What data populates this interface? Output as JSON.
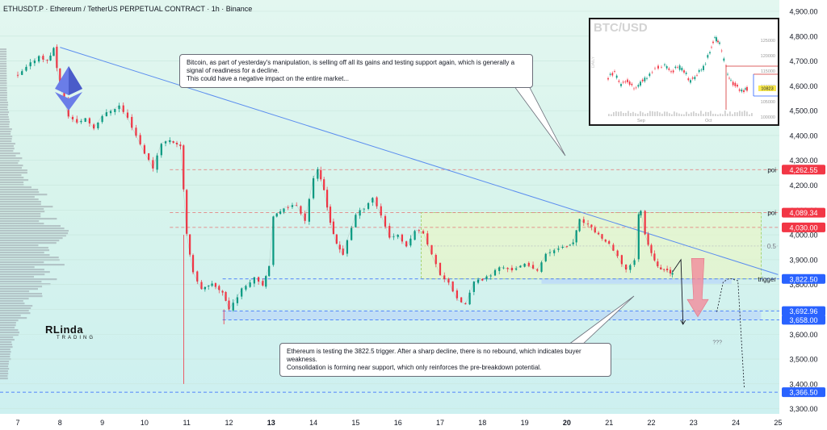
{
  "header": {
    "title": "ETHUSDT.P · Ethereum / TetherUS PERPETUAL CONTRACT · 1h · Binance"
  },
  "callouts": {
    "btc": "Bitcoin, as part of yesterday's manipulation, is selling off all its gains and testing support again, which is generally a signal of readiness for a decline.\nThis could have a negative impact on the entire market...",
    "eth": "Ethereum is testing the 3822.5 trigger. After a sharp decline, there is no rebound, which indicates buyer weakness.\nConsolidation is forming near support, which only reinforces the pre-breakdown potential."
  },
  "logo": {
    "main": "RLinda",
    "sub": "TRADING"
  },
  "colors": {
    "up": "#089981",
    "down": "#f23645",
    "accent": "#2962ff",
    "red_label": "#f23645",
    "blue_label": "#2962ff",
    "poi_line": "#e57373",
    "trendline": "#5b8def"
  },
  "chart_data": {
    "type": "line",
    "title": "ETHUSDT.P · Ethereum / TetherUS PERPETUAL CONTRACT · 1h · Binance",
    "x_ticks": [
      "7",
      "8",
      "9",
      "10",
      "11",
      "12",
      "13",
      "14",
      "15",
      "16",
      "17",
      "18",
      "19",
      "20",
      "21",
      "22",
      "23",
      "24",
      "25"
    ],
    "y_ticks": [
      "4,900.00",
      "4,800.00",
      "4,700.00",
      "4,600.00",
      "4,500.00",
      "4,400.00",
      "4,300.00",
      "4,200.00",
      "4,100.00",
      "4,000.00",
      "3,900.00",
      "3,800.00",
      "3,700.00",
      "3,600.00",
      "3,500.00",
      "3,400.00",
      "3,300.00"
    ],
    "ylim": [
      3270,
      4935
    ],
    "price_path": [
      [
        7.0,
        4640
      ],
      [
        7.3,
        4690
      ],
      [
        7.5,
        4720
      ],
      [
        7.7,
        4700
      ],
      [
        7.85,
        4750
      ],
      [
        8.0,
        4600
      ],
      [
        8.2,
        4480
      ],
      [
        8.4,
        4450
      ],
      [
        8.6,
        4470
      ],
      [
        8.8,
        4430
      ],
      [
        9.0,
        4480
      ],
      [
        9.2,
        4500
      ],
      [
        9.4,
        4520
      ],
      [
        9.6,
        4470
      ],
      [
        9.8,
        4400
      ],
      [
        10.0,
        4330
      ],
      [
        10.2,
        4270
      ],
      [
        10.4,
        4370
      ],
      [
        10.6,
        4380
      ],
      [
        10.85,
        4360
      ],
      [
        11.0,
        4000
      ],
      [
        11.15,
        3850
      ],
      [
        11.35,
        3780
      ],
      [
        11.6,
        3800
      ],
      [
        11.85,
        3770
      ],
      [
        12.0,
        3700
      ],
      [
        12.3,
        3780
      ],
      [
        12.6,
        3830
      ],
      [
        12.8,
        3800
      ],
      [
        12.95,
        3870
      ],
      [
        13.05,
        4070
      ],
      [
        13.3,
        4110
      ],
      [
        13.6,
        4120
      ],
      [
        13.8,
        4060
      ],
      [
        14.0,
        4230
      ],
      [
        14.1,
        4260
      ],
      [
        14.25,
        4180
      ],
      [
        14.4,
        4050
      ],
      [
        14.55,
        3960
      ],
      [
        14.7,
        3920
      ],
      [
        14.8,
        3980
      ],
      [
        15.0,
        4080
      ],
      [
        15.2,
        4110
      ],
      [
        15.4,
        4150
      ],
      [
        15.6,
        4080
      ],
      [
        15.8,
        3990
      ],
      [
        16.0,
        4000
      ],
      [
        16.2,
        3950
      ],
      [
        16.4,
        4020
      ],
      [
        16.6,
        4010
      ],
      [
        16.8,
        3920
      ],
      [
        17.0,
        3840
      ],
      [
        17.2,
        3810
      ],
      [
        17.4,
        3740
      ],
      [
        17.6,
        3720
      ],
      [
        17.8,
        3810
      ],
      [
        18.0,
        3820
      ],
      [
        18.2,
        3840
      ],
      [
        18.4,
        3870
      ],
      [
        18.7,
        3860
      ],
      [
        19.0,
        3880
      ],
      [
        19.3,
        3860
      ],
      [
        19.5,
        3920
      ],
      [
        19.8,
        3950
      ],
      [
        20.0,
        3950
      ],
      [
        20.15,
        3970
      ],
      [
        20.3,
        4060
      ],
      [
        20.5,
        4040
      ],
      [
        20.75,
        4000
      ],
      [
        21.0,
        3960
      ],
      [
        21.2,
        3910
      ],
      [
        21.4,
        3860
      ],
      [
        21.5,
        3880
      ],
      [
        21.6,
        3900
      ],
      [
        21.7,
        4080
      ],
      [
        21.75,
        4100
      ],
      [
        21.85,
        4000
      ],
      [
        22.0,
        3930
      ],
      [
        22.15,
        3870
      ],
      [
        22.3,
        3860
      ],
      [
        22.45,
        3845
      ],
      [
        22.5,
        3850
      ]
    ],
    "levels": [
      {
        "label": "4,262.55",
        "value": 4262.55,
        "style": "red",
        "tag": "poi"
      },
      {
        "label": "4,089.34",
        "value": 4089.34,
        "style": "red",
        "tag": "poi"
      },
      {
        "label": "4,030.00",
        "value": 4030.0,
        "style": "red",
        "tag": ""
      },
      {
        "label": "3,822.50",
        "value": 3822.5,
        "style": "blue",
        "tag": "trigger"
      },
      {
        "label": "3,692.96",
        "value": 3692.96,
        "style": "blue",
        "tag": ""
      },
      {
        "label": "3,658.00",
        "value": 3658.0,
        "style": "blue",
        "tag": ""
      },
      {
        "label": "3,366.50",
        "value": 3366.5,
        "style": "blue",
        "tag": ""
      }
    ],
    "fib_label": "0.5",
    "fib_value": 3955,
    "projection_label": "???",
    "range_box": {
      "x": [
        16.55,
        24.6
      ],
      "y": [
        3822.5,
        4089.34
      ]
    },
    "support_zone": {
      "x": [
        11.85,
        24.6
      ],
      "y": [
        3658.0,
        3692.96
      ]
    },
    "trendline": [
      [
        8.0,
        4755
      ],
      [
        25.0,
        3840
      ]
    ],
    "inset": {
      "title": "BTC/USD",
      "label": "DAILY",
      "y_ticks": [
        "125000",
        "120000",
        "115000",
        "110000",
        "105000",
        "100000"
      ],
      "x_ticks": [
        "Sep",
        "Oct"
      ],
      "current_price": "10823"
    }
  }
}
